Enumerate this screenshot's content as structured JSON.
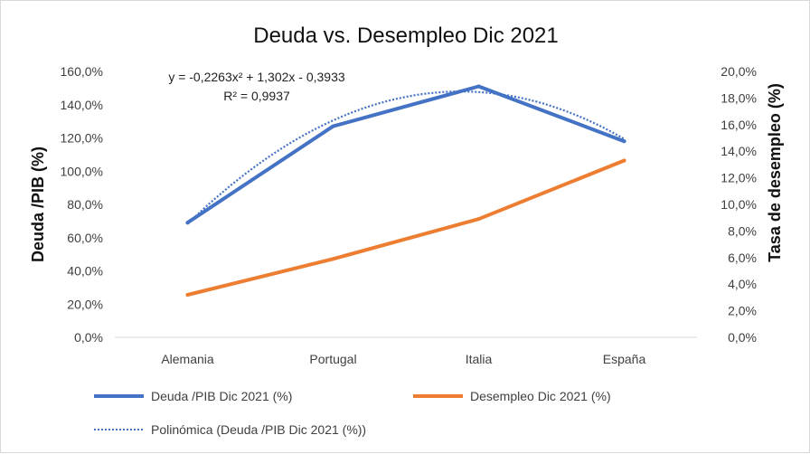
{
  "chart_data": {
    "type": "line",
    "title": "Deuda vs. Desempleo Dic 2021",
    "categories": [
      "Alemania",
      "Portugal",
      "Italia",
      "España"
    ],
    "ylabel_left": "Deuda /PIB (%)",
    "ylabel_right": "Tasa de desempleo (%)",
    "ylim_left": [
      0,
      1.6
    ],
    "ylim_right": [
      0,
      0.2
    ],
    "yticks_left": [
      "0,0%",
      "20,0%",
      "40,0%",
      "60,0%",
      "80,0%",
      "100,0%",
      "120,0%",
      "140,0%",
      "160,0%"
    ],
    "yticks_right": [
      "0,0%",
      "2,0%",
      "4,0%",
      "6,0%",
      "8,0%",
      "10,0%",
      "12,0%",
      "14,0%",
      "16,0%",
      "18,0%",
      "20,0%"
    ],
    "series": [
      {
        "name": "Deuda /PIB Dic 2021 (%)",
        "axis": "left",
        "color": "#4472C4",
        "values": [
          0.69,
          1.27,
          1.51,
          1.18
        ]
      },
      {
        "name": "Desempleo Dic 2021 (%)",
        "axis": "right",
        "color": "#ED7D31",
        "values": [
          0.032,
          0.059,
          0.089,
          0.133
        ]
      }
    ],
    "trendline": {
      "name": "Polinómica (Deuda /PIB Dic 2021 (%))",
      "of_series": "Deuda /PIB Dic 2021 (%)",
      "type": "polynomial",
      "coefficients": [
        -0.2263,
        1.302,
        -0.3933
      ],
      "equation": "y = -0,2263x² + 1,302x - 0,3933",
      "r2": "R² = 0,9937",
      "color": "#4472C4"
    },
    "legend_position": "bottom",
    "grid": false
  }
}
